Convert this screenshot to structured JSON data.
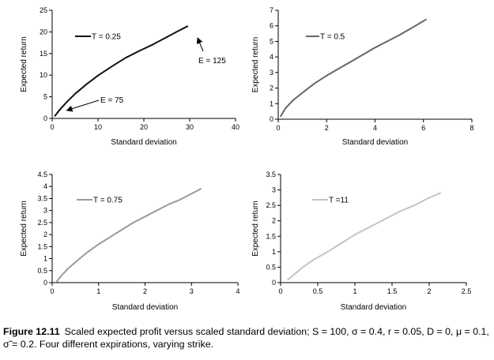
{
  "chart_data": [
    {
      "type": "line",
      "xlabel": "Standard deviation",
      "ylabel": "Expected return",
      "xlim": [
        0,
        40
      ],
      "ylim": [
        0,
        25
      ],
      "xticks": [
        0,
        10,
        20,
        30,
        40
      ],
      "yticks": [
        0,
        5,
        10,
        15,
        20,
        25
      ],
      "legend": "top-left",
      "series": [
        {
          "name": "T = 0.25",
          "color": "#111111",
          "x": [
            0.6,
            1.5,
            3,
            5,
            7.5,
            10,
            13,
            16,
            19,
            22,
            25,
            27.5,
            29.5
          ],
          "y": [
            0.6,
            1.8,
            3.6,
            5.7,
            7.9,
            9.9,
            12.0,
            14.0,
            15.6,
            17.1,
            18.8,
            20.2,
            21.3
          ]
        }
      ],
      "annotations": [
        {
          "text": "E = 75",
          "x": 2.5,
          "y": 1.5
        },
        {
          "text": "E = 125",
          "x": 29.5,
          "y": 21.3
        }
      ]
    },
    {
      "type": "line",
      "xlabel": "Standard deviation",
      "ylabel": "Expected return",
      "xlim": [
        0,
        8
      ],
      "ylim": [
        0,
        7
      ],
      "xticks": [
        0,
        2,
        4,
        6,
        8
      ],
      "yticks": [
        0,
        1,
        2,
        3,
        4,
        5,
        6,
        7
      ],
      "legend": "top-left",
      "series": [
        {
          "name": "T = 0.5",
          "color": "#666666",
          "x": [
            0.1,
            0.3,
            0.6,
            1.0,
            1.5,
            2.0,
            2.5,
            3.0,
            3.5,
            4.0,
            4.5,
            5.0,
            5.5,
            6.1
          ],
          "y": [
            0.2,
            0.7,
            1.2,
            1.7,
            2.3,
            2.8,
            3.25,
            3.7,
            4.15,
            4.6,
            5.0,
            5.4,
            5.85,
            6.4
          ]
        }
      ]
    },
    {
      "type": "line",
      "xlabel": "Standard deviation",
      "ylabel": "Expected return",
      "xlim": [
        0,
        4
      ],
      "ylim": [
        0,
        4.5
      ],
      "xticks": [
        0,
        1,
        2,
        3,
        4
      ],
      "yticks": [
        0,
        0.5,
        1,
        1.5,
        2,
        2.5,
        3,
        3.5,
        4,
        4.5
      ],
      "legend": "top-left",
      "series": [
        {
          "name": "T = 0.75",
          "color": "#9a9a9a",
          "x": [
            0.1,
            0.2,
            0.35,
            0.5,
            0.75,
            1.0,
            1.25,
            1.5,
            1.75,
            2.0,
            2.25,
            2.5,
            2.75,
            3.0,
            3.2
          ],
          "y": [
            0.05,
            0.3,
            0.6,
            0.85,
            1.25,
            1.6,
            1.9,
            2.2,
            2.5,
            2.75,
            3.0,
            3.25,
            3.45,
            3.7,
            3.9
          ]
        }
      ]
    },
    {
      "type": "line",
      "xlabel": "Standard deviation",
      "ylabel": "Expected return",
      "xlim": [
        0,
        2.5
      ],
      "ylim": [
        0,
        3.5
      ],
      "xticks": [
        0,
        0.5,
        1,
        1.5,
        2,
        2.5
      ],
      "yticks": [
        0,
        0.5,
        1,
        1.5,
        2,
        2.5,
        3,
        3.5
      ],
      "legend": "top-left",
      "series": [
        {
          "name": "T =11",
          "color": "#c4c4c4",
          "x": [
            0.1,
            0.2,
            0.3,
            0.45,
            0.6,
            0.8,
            1.0,
            1.2,
            1.4,
            1.6,
            1.8,
            2.0,
            2.15
          ],
          "y": [
            0.1,
            0.3,
            0.5,
            0.75,
            0.95,
            1.25,
            1.55,
            1.8,
            2.05,
            2.3,
            2.5,
            2.75,
            2.9
          ]
        }
      ]
    }
  ],
  "caption": {
    "label": "Figure 12.11",
    "text": "Scaled expected profit versus scaled standard deviation; S = 100, σ = 0.4, r = 0.05, D = 0, μ = 0.1, σ̃ = 0.2. Four different expirations, varying strike."
  }
}
